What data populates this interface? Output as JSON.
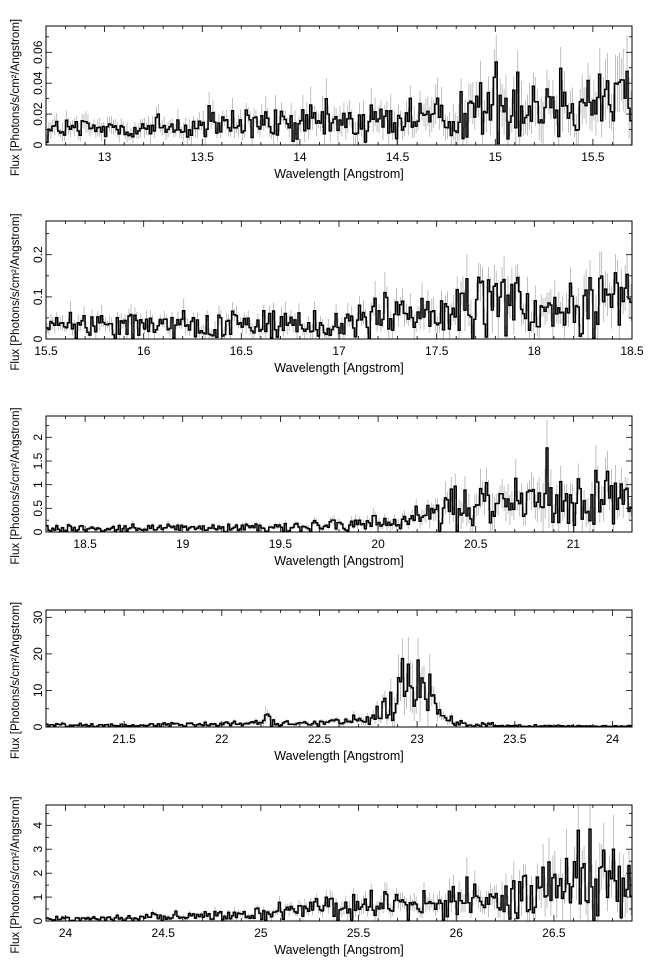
{
  "figure": {
    "colors": {
      "spectrum": "#000000",
      "errorbar": "#b0b0b0",
      "axis": "#000000"
    }
  },
  "chart_data": [
    {
      "type": "line",
      "style": "step",
      "xlabel": "Wavelength [Angstrom]",
      "ylabel": "Flux [Photons/s/cm²/Angstrom]",
      "xlim": [
        12.7,
        15.7
      ],
      "ylim": [
        0,
        0.077
      ],
      "xticks": [
        13,
        13.5,
        14,
        14.5,
        15,
        15.5
      ],
      "yticks": [
        0,
        0.02,
        0.04,
        0.06
      ],
      "ytick_labels": [
        "0",
        "0.02",
        "0.04",
        "0.06"
      ],
      "y_minor_step": 0.01,
      "grid": false,
      "series": [
        {
          "x": [
            12.7,
            12.9,
            13.1,
            13.3,
            13.5,
            13.7,
            13.9,
            14.1,
            14.3,
            14.5,
            14.7,
            14.9,
            15.0,
            15.1,
            15.2,
            15.3,
            15.4,
            15.5,
            15.6,
            15.7
          ],
          "y": [
            0.01,
            0.01,
            0.011,
            0.011,
            0.012,
            0.013,
            0.013,
            0.014,
            0.015,
            0.016,
            0.018,
            0.022,
            0.026,
            0.028,
            0.027,
            0.026,
            0.028,
            0.03,
            0.033,
            0.036
          ],
          "noise": 0.45
        }
      ]
    },
    {
      "type": "line",
      "style": "step",
      "xlabel": "Wavelength [Angstrom]",
      "ylabel": "Flux [Photons/s/cm²/Angstrom]",
      "xlim": [
        15.5,
        18.5
      ],
      "ylim": [
        0,
        0.28
      ],
      "xticks": [
        15.5,
        16,
        16.5,
        17,
        17.5,
        18,
        18.5
      ],
      "yticks": [
        0,
        0.1,
        0.2
      ],
      "ytick_labels": [
        "0",
        "0.1",
        "0.2"
      ],
      "y_minor_step": 0.05,
      "grid": false,
      "series": [
        {
          "x": [
            15.5,
            15.8,
            16.1,
            16.4,
            16.7,
            17.0,
            17.2,
            17.3,
            17.5,
            17.6,
            17.75,
            17.85,
            18.0,
            18.1,
            18.2,
            18.35,
            18.5
          ],
          "y": [
            0.03,
            0.033,
            0.033,
            0.036,
            0.036,
            0.038,
            0.045,
            0.06,
            0.045,
            0.07,
            0.1,
            0.085,
            0.055,
            0.06,
            0.075,
            0.08,
            0.085
          ],
          "noise": 0.5
        }
      ]
    },
    {
      "type": "line",
      "style": "step",
      "xlabel": "Wavelength [Angstrom]",
      "ylabel": "Flux [Photons/s/cm²/Angstrom]",
      "xlim": [
        18.3,
        21.3
      ],
      "ylim": [
        0,
        2.45
      ],
      "xticks": [
        18.5,
        19,
        19.5,
        20,
        20.5,
        21
      ],
      "yticks": [
        0,
        0.5,
        1,
        1.5,
        2
      ],
      "ytick_labels": [
        "0",
        "0.5",
        "1",
        "1.5",
        "2"
      ],
      "y_minor_step": 0.25,
      "grid": false,
      "series": [
        {
          "x": [
            18.3,
            18.6,
            18.9,
            19.2,
            19.5,
            19.8,
            20.0,
            20.2,
            20.3,
            20.5,
            20.6,
            20.7,
            20.85,
            20.95,
            21.05,
            21.2,
            21.3
          ],
          "y": [
            0.08,
            0.08,
            0.08,
            0.09,
            0.1,
            0.13,
            0.18,
            0.25,
            0.4,
            0.55,
            0.65,
            0.55,
            0.85,
            0.7,
            0.6,
            0.7,
            0.5
          ],
          "noise": 0.5
        }
      ]
    },
    {
      "type": "line",
      "style": "step",
      "xlabel": "Wavelength [Angstrom]",
      "ylabel": "Flux [Photons/s/cm²/Angstrom]",
      "xlim": [
        21.1,
        24.1
      ],
      "ylim": [
        0,
        32
      ],
      "xticks": [
        21.5,
        22,
        22.5,
        23,
        23.5,
        24
      ],
      "yticks": [
        0,
        10,
        20,
        30
      ],
      "ytick_labels": [
        "0",
        "10",
        "20",
        "30"
      ],
      "y_minor_step": 5,
      "grid": false,
      "series": [
        {
          "x": [
            21.1,
            21.5,
            21.8,
            22.0,
            22.2,
            22.22,
            22.26,
            22.4,
            22.6,
            22.7,
            22.8,
            22.85,
            22.9,
            22.95,
            23.0,
            23.05,
            23.1,
            23.2,
            23.3,
            23.36,
            23.4,
            24.1
          ],
          "y": [
            0.5,
            0.5,
            0.7,
            0.8,
            1.0,
            4.5,
            1.2,
            1.0,
            1.5,
            1.8,
            3.0,
            5.0,
            9.0,
            11.0,
            12.0,
            9.0,
            3.5,
            0.9,
            0.5,
            1.0,
            0.3,
            0.2
          ],
          "noise": 0.5
        }
      ]
    },
    {
      "type": "line",
      "style": "step",
      "xlabel": "Wavelength [Angstrom]",
      "ylabel": "Flux [Photons/s/cm²/Angstrom]",
      "xlim": [
        23.9,
        26.9
      ],
      "ylim": [
        0,
        4.85
      ],
      "xticks": [
        24,
        24.5,
        25,
        25.5,
        26,
        26.5
      ],
      "yticks": [
        0,
        1,
        2,
        3,
        4
      ],
      "ytick_labels": [
        "0",
        "1",
        "2",
        "3",
        "4"
      ],
      "y_minor_step": 0.5,
      "grid": false,
      "series": [
        {
          "x": [
            23.9,
            24.2,
            24.5,
            24.8,
            25.0,
            25.2,
            25.4,
            25.6,
            25.8,
            26.0,
            26.2,
            26.4,
            26.55,
            26.65,
            26.75,
            26.9
          ],
          "y": [
            0.1,
            0.12,
            0.18,
            0.25,
            0.3,
            0.5,
            0.55,
            0.65,
            0.65,
            0.75,
            0.9,
            1.3,
            1.7,
            2.0,
            1.6,
            1.7
          ],
          "noise": 0.5
        }
      ]
    }
  ]
}
